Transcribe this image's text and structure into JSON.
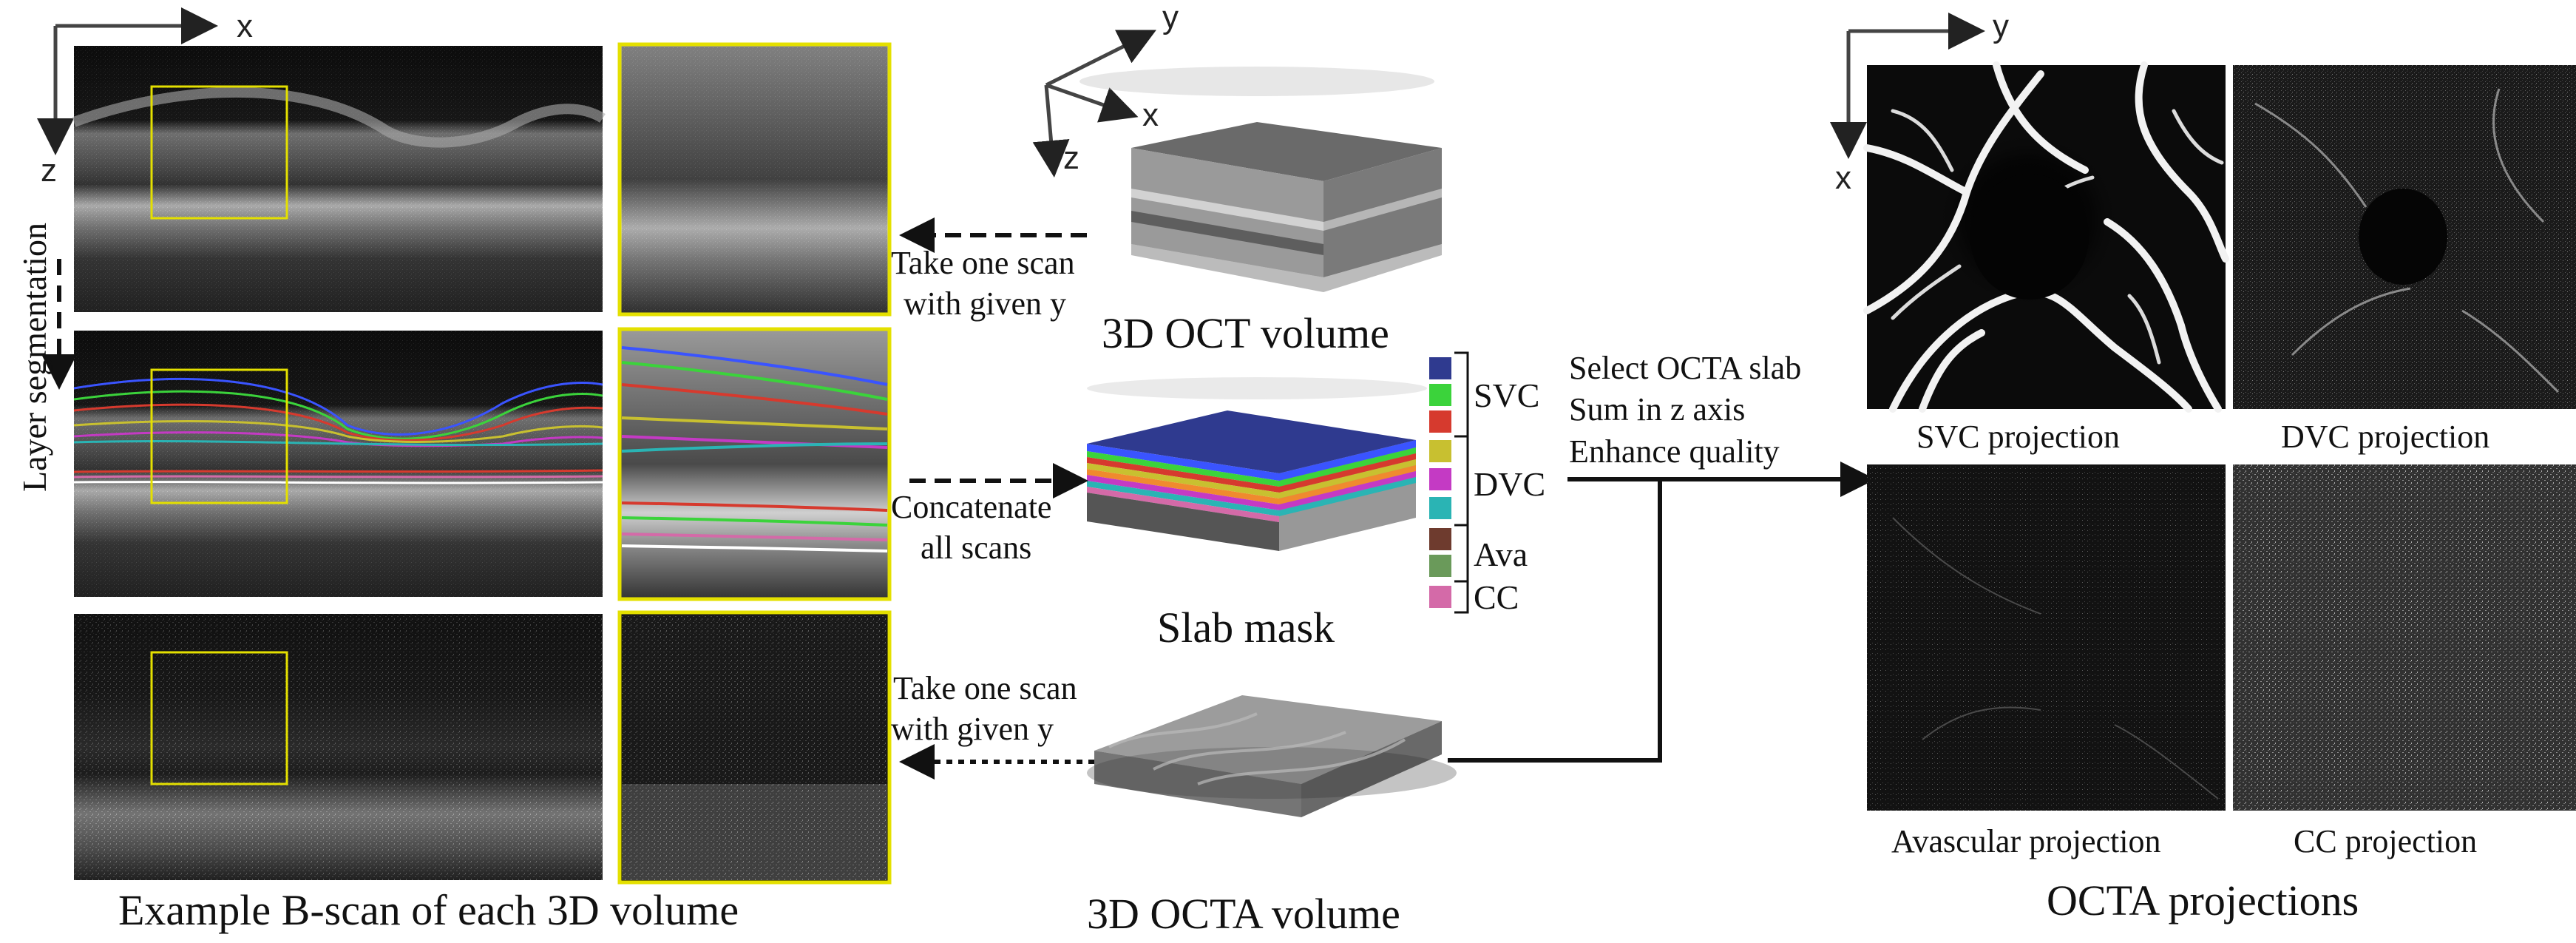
{
  "axes": {
    "left": {
      "x": "x",
      "z": "z"
    },
    "volume": {
      "x": "x",
      "y": "y",
      "z": "z"
    },
    "projection": {
      "x": "x",
      "y": "y"
    }
  },
  "left_panel": {
    "side_label": "Layer segmentation",
    "caption": "Example B-scan of each 3D volume"
  },
  "middle": {
    "oct_caption": "3D OCT volume",
    "slab_caption": "Slab mask",
    "octa_caption": "3D OCTA volume",
    "arrow1_line1": "Take one scan",
    "arrow1_line2": "with given y",
    "arrow2_line1": "Concatenate",
    "arrow2_line2": "all scans",
    "arrow3_line1": "Take one scan",
    "arrow3_line2": "with given y"
  },
  "legend": {
    "colors": [
      "#2f3a8f",
      "#3bd33b",
      "#d63a2e",
      "#c8c030",
      "#c43ac4",
      "#2ab4b4",
      "#6e3b2e",
      "#6a9a5a",
      "#d46aa8"
    ],
    "labels": {
      "svc": "SVC",
      "dvc": "DVC",
      "ava": "Ava",
      "cc": "CC"
    }
  },
  "process": {
    "step1": "Select OCTA slab",
    "step2": "Sum in z axis",
    "step3": "Enhance quality"
  },
  "projections": {
    "svc": "SVC projection",
    "dvc": "DVC projection",
    "avascular": "Avascular projection",
    "cc": "CC projection",
    "caption": "OCTA projections"
  }
}
